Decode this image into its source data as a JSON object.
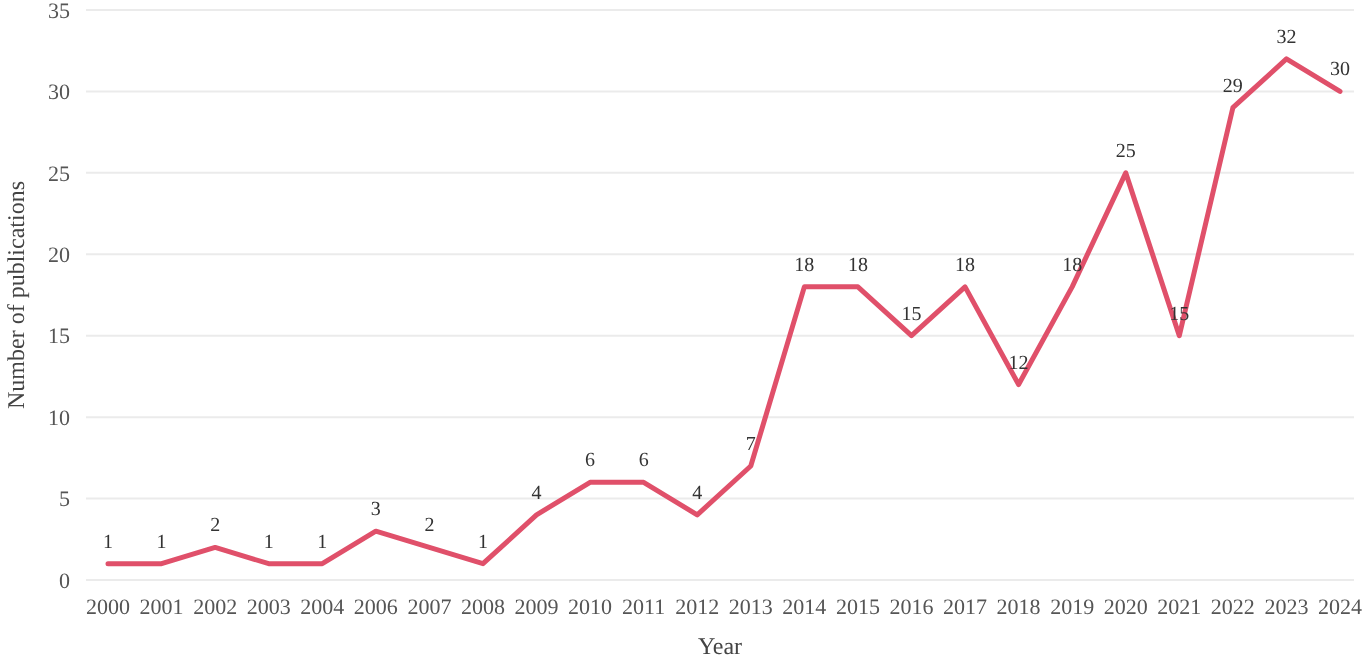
{
  "chart_data": {
    "type": "line",
    "xlabel": "Year",
    "ylabel": "Number of publications",
    "categories": [
      "2000",
      "2001",
      "2002",
      "2003",
      "2004",
      "2006",
      "2007",
      "2008",
      "2009",
      "2010",
      "2011",
      "2012",
      "2013",
      "2014",
      "2015",
      "2016",
      "2017",
      "2018",
      "2019",
      "2020",
      "2021",
      "2022",
      "2023",
      "2024"
    ],
    "series": [
      {
        "color": "#e0506a",
        "values": [
          1,
          1,
          2,
          1,
          1,
          3,
          2,
          1,
          4,
          6,
          6,
          4,
          7,
          18,
          18,
          15,
          18,
          12,
          18,
          25,
          15,
          29,
          32,
          30
        ]
      }
    ],
    "ylim": [
      0,
      35
    ],
    "yticks": [
      0,
      5,
      10,
      15,
      20,
      25,
      30,
      35
    ],
    "grid": "y",
    "data_labels": true,
    "marker": "none",
    "line_style": "solid"
  }
}
